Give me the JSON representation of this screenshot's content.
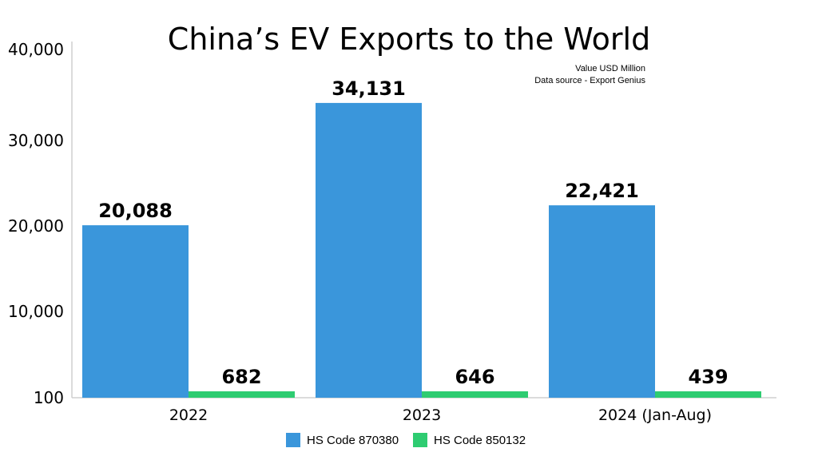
{
  "chart_data": {
    "type": "bar",
    "title": "China’s EV Exports to the World",
    "subtitle_lines": [
      "Value USD Million",
      "Data source - Export Genius"
    ],
    "categories": [
      "2022",
      "2023",
      "2024 (Jan-Aug)"
    ],
    "series": [
      {
        "name": "HS Code 870380",
        "values": [
          20088,
          34131,
          22421
        ],
        "labels": [
          "20,088",
          "34,131",
          "22,421"
        ],
        "color": "#3a96db"
      },
      {
        "name": "HS Code 850132",
        "values": [
          682,
          646,
          439
        ],
        "labels": [
          "682",
          "646",
          "439"
        ],
        "color": "#2ecc71"
      }
    ],
    "yticks": [
      "100",
      "10,000",
      "20,000",
      "30,000",
      "40,000"
    ],
    "ylim": [
      100,
      40000
    ],
    "grid": false,
    "legend_position": "bottom-center"
  }
}
